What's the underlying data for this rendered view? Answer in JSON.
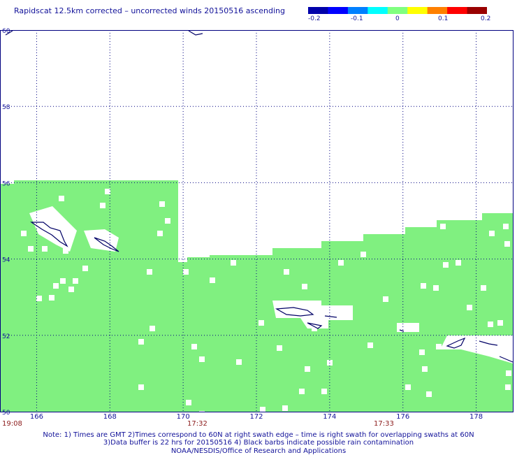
{
  "title": "Rapidscat 12.5km corrected – uncorrected winds 20150516 ascending",
  "colorbar": {
    "ticks": [
      "-0.2",
      "-0.1",
      "0",
      "0.1",
      "0.2"
    ],
    "colors": [
      "#0000aa",
      "#0000ff",
      "#0080ff",
      "#00ffff",
      "#80ff80",
      "#ffff00",
      "#ff8000",
      "#ff0000",
      "#990000"
    ]
  },
  "map": {
    "lat_range": [
      50,
      60
    ],
    "lon_range": [
      165,
      179
    ],
    "lat_ticks": [
      "60",
      "58",
      "56",
      "54",
      "52",
      "50"
    ],
    "lon_ticks": [
      "166",
      "168",
      "170",
      "172",
      "174",
      "176",
      "178"
    ],
    "wind_color": "#80f080",
    "coast_color": "#000066",
    "grid_color": "#000080"
  },
  "times": [
    "19:08",
    "17:32",
    "17:33"
  ],
  "notes": {
    "line1": "Note: 1) Times are GMT 2)Times correspond to 60N at right swath edge – time is right swath for overlapping swaths at 60N",
    "line2": "3)Data buffer is 22 hrs for 20150516 4) Black barbs indicate possible rain contamination",
    "line3": "NOAA/NESDIS/Office of Research and Applications"
  }
}
